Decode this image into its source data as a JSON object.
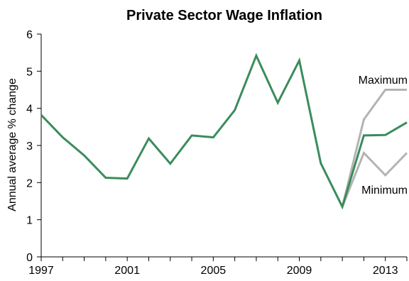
{
  "chart_data": {
    "type": "line",
    "title": "Private Sector Wage Inflation",
    "xlabel": "",
    "ylabel": "Annual average % change",
    "xlim": [
      1997,
      2014
    ],
    "ylim": [
      0,
      6
    ],
    "yticks": [
      "0",
      "1",
      "2",
      "3",
      "4",
      "5",
      "6"
    ],
    "xticks": [
      "1997",
      "2001",
      "2005",
      "2009",
      "2013"
    ],
    "grid": false,
    "series": [
      {
        "key": "actual",
        "color": "#3a8c5c",
        "x": [
          1997,
          1998,
          1999,
          2000,
          2001,
          2002,
          2003,
          2004,
          2005,
          2006,
          2007,
          2008,
          2009,
          2010,
          2011,
          2012,
          2013,
          2014
        ],
        "values": [
          3.82,
          3.22,
          2.73,
          2.13,
          2.11,
          3.19,
          2.51,
          3.27,
          3.22,
          3.95,
          5.42,
          4.15,
          5.29,
          2.52,
          1.35,
          3.27,
          3.28,
          3.62
        ]
      },
      {
        "name": "Maximum",
        "key": "maximum",
        "color": "#b3b3b3",
        "x": [
          2011,
          2012,
          2013,
          2014
        ],
        "values": [
          1.35,
          3.7,
          4.5,
          4.5
        ]
      },
      {
        "name": "Minimum",
        "key": "minimum",
        "color": "#b3b3b3",
        "x": [
          2011,
          2012,
          2013,
          2014
        ],
        "values": [
          1.35,
          2.8,
          2.2,
          2.8
        ]
      }
    ]
  }
}
